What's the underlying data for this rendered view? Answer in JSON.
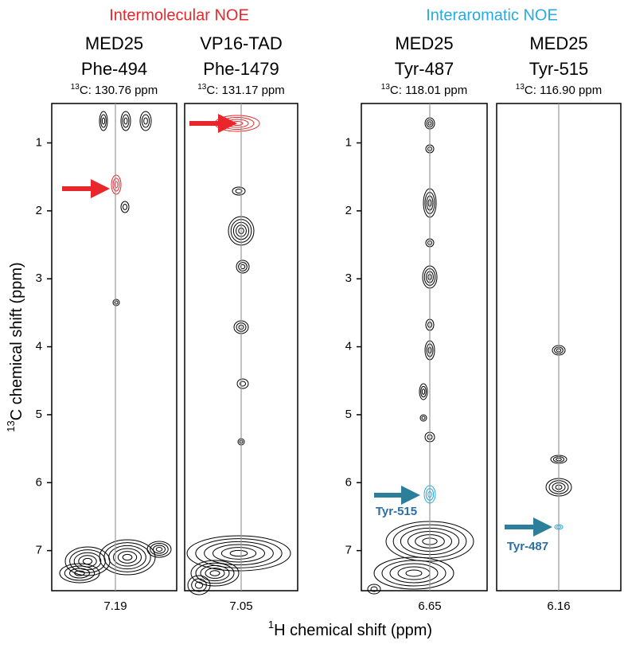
{
  "groups": [
    {
      "title": "Intermolecular NOE"
    },
    {
      "title": "Interaromatic NOE"
    }
  ],
  "strips": [
    {
      "protein": "MED25",
      "residue": "Phe-494",
      "isotope": "13",
      "carbon": "C: 130.76 ppm",
      "h_shift": "7.19"
    },
    {
      "protein": "VP16-TAD",
      "residue": "Phe-1479",
      "isotope": "13",
      "carbon": "C: 131.17 ppm",
      "h_shift": "7.05"
    },
    {
      "protein": "MED25",
      "residue": "Tyr-487",
      "isotope": "13",
      "carbon": "C: 118.01 ppm",
      "h_shift": "6.65"
    },
    {
      "protein": "MED25",
      "residue": "Tyr-515",
      "isotope": "13",
      "carbon": "C: 116.90 ppm",
      "h_shift": "6.16"
    }
  ],
  "y_axis": {
    "isotope": "13",
    "label": "C chemical shift  (ppm)",
    "ylim": [
      0.42,
      7.59
    ],
    "yticks": [
      1,
      2,
      3,
      4,
      5,
      6,
      7
    ]
  },
  "x_axis": {
    "isotope": "1",
    "label": "H chemical shift  (ppm)"
  },
  "annotations": [
    "Tyr-515",
    "Tyr-487"
  ]
}
